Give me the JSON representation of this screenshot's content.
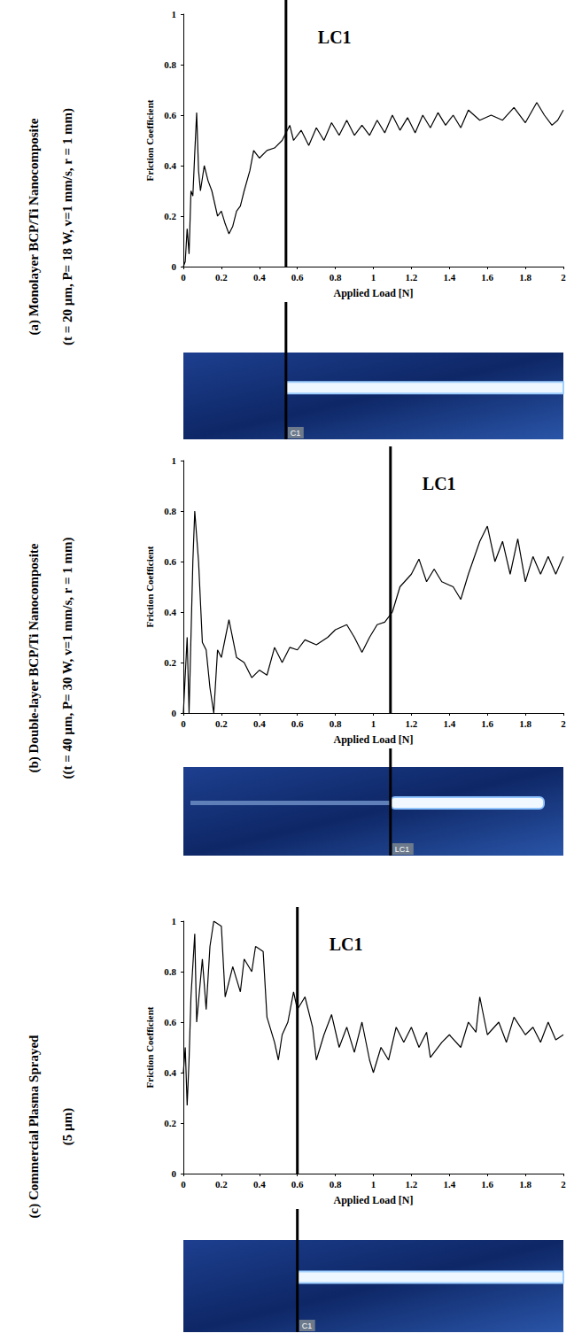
{
  "chart_data": [
    {
      "type": "line",
      "title": "(a) Monolayer BCP/Ti Nanocomposite",
      "subtitle": "(t = 20 µm, P= 18 W, v=1 mm/s, r = 1 mm)",
      "x_label": "Applied Load [N]",
      "y_label": "Friction Coefficient",
      "color": "#000000",
      "grid": false,
      "xlim": [
        0,
        2
      ],
      "ylim": [
        0,
        1
      ],
      "xticks": [
        0,
        0.2,
        0.4,
        0.6,
        0.8,
        1,
        1.2,
        1.4,
        1.6,
        1.8,
        2
      ],
      "yticks": [
        0,
        0.2,
        0.4,
        0.6,
        0.8,
        1
      ],
      "annotation": {
        "label": "LC1",
        "x": 0.54
      },
      "image_label": "C1",
      "x": [
        0,
        0.01,
        0.02,
        0.03,
        0.04,
        0.05,
        0.06,
        0.07,
        0.08,
        0.09,
        0.11,
        0.13,
        0.15,
        0.18,
        0.2,
        0.22,
        0.24,
        0.26,
        0.28,
        0.3,
        0.32,
        0.35,
        0.37,
        0.4,
        0.44,
        0.48,
        0.52,
        0.56,
        0.58,
        0.62,
        0.66,
        0.7,
        0.74,
        0.78,
        0.82,
        0.86,
        0.9,
        0.94,
        0.98,
        1.02,
        1.06,
        1.1,
        1.14,
        1.18,
        1.22,
        1.26,
        1.3,
        1.34,
        1.38,
        1.42,
        1.46,
        1.5,
        1.56,
        1.62,
        1.68,
        1.74,
        1.8,
        1.86,
        1.9,
        1.94,
        1.97,
        2
      ],
      "values": [
        0,
        0.02,
        0.15,
        0.05,
        0.3,
        0.28,
        0.45,
        0.61,
        0.38,
        0.3,
        0.4,
        0.34,
        0.3,
        0.2,
        0.22,
        0.17,
        0.13,
        0.16,
        0.22,
        0.24,
        0.3,
        0.38,
        0.46,
        0.43,
        0.46,
        0.47,
        0.5,
        0.56,
        0.5,
        0.54,
        0.48,
        0.55,
        0.5,
        0.57,
        0.52,
        0.58,
        0.52,
        0.56,
        0.52,
        0.58,
        0.53,
        0.6,
        0.54,
        0.59,
        0.53,
        0.6,
        0.55,
        0.61,
        0.56,
        0.6,
        0.55,
        0.62,
        0.58,
        0.6,
        0.58,
        0.63,
        0.57,
        0.65,
        0.6,
        0.56,
        0.58,
        0.62
      ]
    },
    {
      "type": "line",
      "title": "(b) Double-layer BCP/Ti Nanocomposite",
      "subtitle": "((t = 40 µm, P= 30 W, v=1 mm/s, r = 1 mm)",
      "x_label": "Applied Load [N]",
      "y_label": "Friction Coefficient",
      "color": "#000000",
      "grid": false,
      "xlim": [
        0,
        2
      ],
      "ylim": [
        0,
        1
      ],
      "xticks": [
        0,
        0.2,
        0.4,
        0.6,
        0.8,
        1,
        1.2,
        1.4,
        1.6,
        1.8,
        2
      ],
      "yticks": [
        0,
        0.2,
        0.4,
        0.6,
        0.8,
        1
      ],
      "annotation": {
        "label": "LC1",
        "x": 1.09
      },
      "image_label": "LC1",
      "x": [
        0,
        0.02,
        0.03,
        0.05,
        0.06,
        0.08,
        0.1,
        0.12,
        0.14,
        0.16,
        0.18,
        0.2,
        0.24,
        0.28,
        0.32,
        0.36,
        0.4,
        0.44,
        0.48,
        0.52,
        0.56,
        0.6,
        0.64,
        0.7,
        0.76,
        0.8,
        0.86,
        0.9,
        0.94,
        0.98,
        1.02,
        1.06,
        1.1,
        1.14,
        1.2,
        1.24,
        1.28,
        1.32,
        1.36,
        1.42,
        1.46,
        1.5,
        1.56,
        1.6,
        1.64,
        1.68,
        1.72,
        1.76,
        1.8,
        1.84,
        1.88,
        1.92,
        1.96,
        2
      ],
      "values": [
        0,
        0.3,
        0,
        0.6,
        0.8,
        0.6,
        0.28,
        0.25,
        0.1,
        0,
        0.25,
        0.22,
        0.37,
        0.22,
        0.2,
        0.14,
        0.17,
        0.15,
        0.26,
        0.2,
        0.26,
        0.25,
        0.29,
        0.27,
        0.3,
        0.33,
        0.35,
        0.3,
        0.24,
        0.3,
        0.35,
        0.36,
        0.4,
        0.5,
        0.55,
        0.61,
        0.52,
        0.57,
        0.52,
        0.5,
        0.45,
        0.55,
        0.68,
        0.74,
        0.6,
        0.68,
        0.55,
        0.69,
        0.52,
        0.62,
        0.55,
        0.62,
        0.55,
        0.62
      ]
    },
    {
      "type": "line",
      "title": "(c) Commercial Plasma Sprayed",
      "subtitle": "(5 µm)",
      "x_label": "Applied Load [N]",
      "y_label": "Friction Coefficient",
      "color": "#000000",
      "grid": false,
      "xlim": [
        0,
        2
      ],
      "ylim": [
        0,
        1
      ],
      "xticks": [
        0,
        0.2,
        0.4,
        0.6,
        0.8,
        1,
        1.2,
        1.4,
        1.6,
        1.8,
        2
      ],
      "yticks": [
        0,
        0.2,
        0.4,
        0.6,
        0.8,
        1
      ],
      "annotation": {
        "label": "LC1",
        "x": 0.6
      },
      "image_label": "C1",
      "x": [
        0,
        0.01,
        0.02,
        0.03,
        0.04,
        0.06,
        0.07,
        0.1,
        0.12,
        0.14,
        0.16,
        0.2,
        0.22,
        0.26,
        0.3,
        0.32,
        0.36,
        0.38,
        0.42,
        0.44,
        0.48,
        0.5,
        0.52,
        0.55,
        0.58,
        0.6,
        0.64,
        0.68,
        0.7,
        0.74,
        0.78,
        0.82,
        0.86,
        0.9,
        0.94,
        0.98,
        1,
        1.04,
        1.08,
        1.12,
        1.16,
        1.2,
        1.24,
        1.28,
        1.3,
        1.36,
        1.4,
        1.46,
        1.5,
        1.54,
        1.56,
        1.6,
        1.66,
        1.7,
        1.74,
        1.8,
        1.84,
        1.88,
        1.92,
        1.96,
        2
      ],
      "values": [
        0.4,
        0.5,
        0.27,
        0.45,
        0.7,
        0.95,
        0.6,
        0.85,
        0.65,
        0.9,
        1,
        0.98,
        0.7,
        0.82,
        0.72,
        0.85,
        0.8,
        0.9,
        0.88,
        0.62,
        0.52,
        0.45,
        0.55,
        0.6,
        0.72,
        0.65,
        0.7,
        0.58,
        0.45,
        0.55,
        0.63,
        0.5,
        0.58,
        0.48,
        0.6,
        0.45,
        0.4,
        0.5,
        0.45,
        0.58,
        0.52,
        0.58,
        0.5,
        0.56,
        0.46,
        0.52,
        0.55,
        0.5,
        0.6,
        0.56,
        0.7,
        0.55,
        0.6,
        0.52,
        0.62,
        0.55,
        0.58,
        0.52,
        0.6,
        0.53,
        0.55
      ]
    }
  ]
}
